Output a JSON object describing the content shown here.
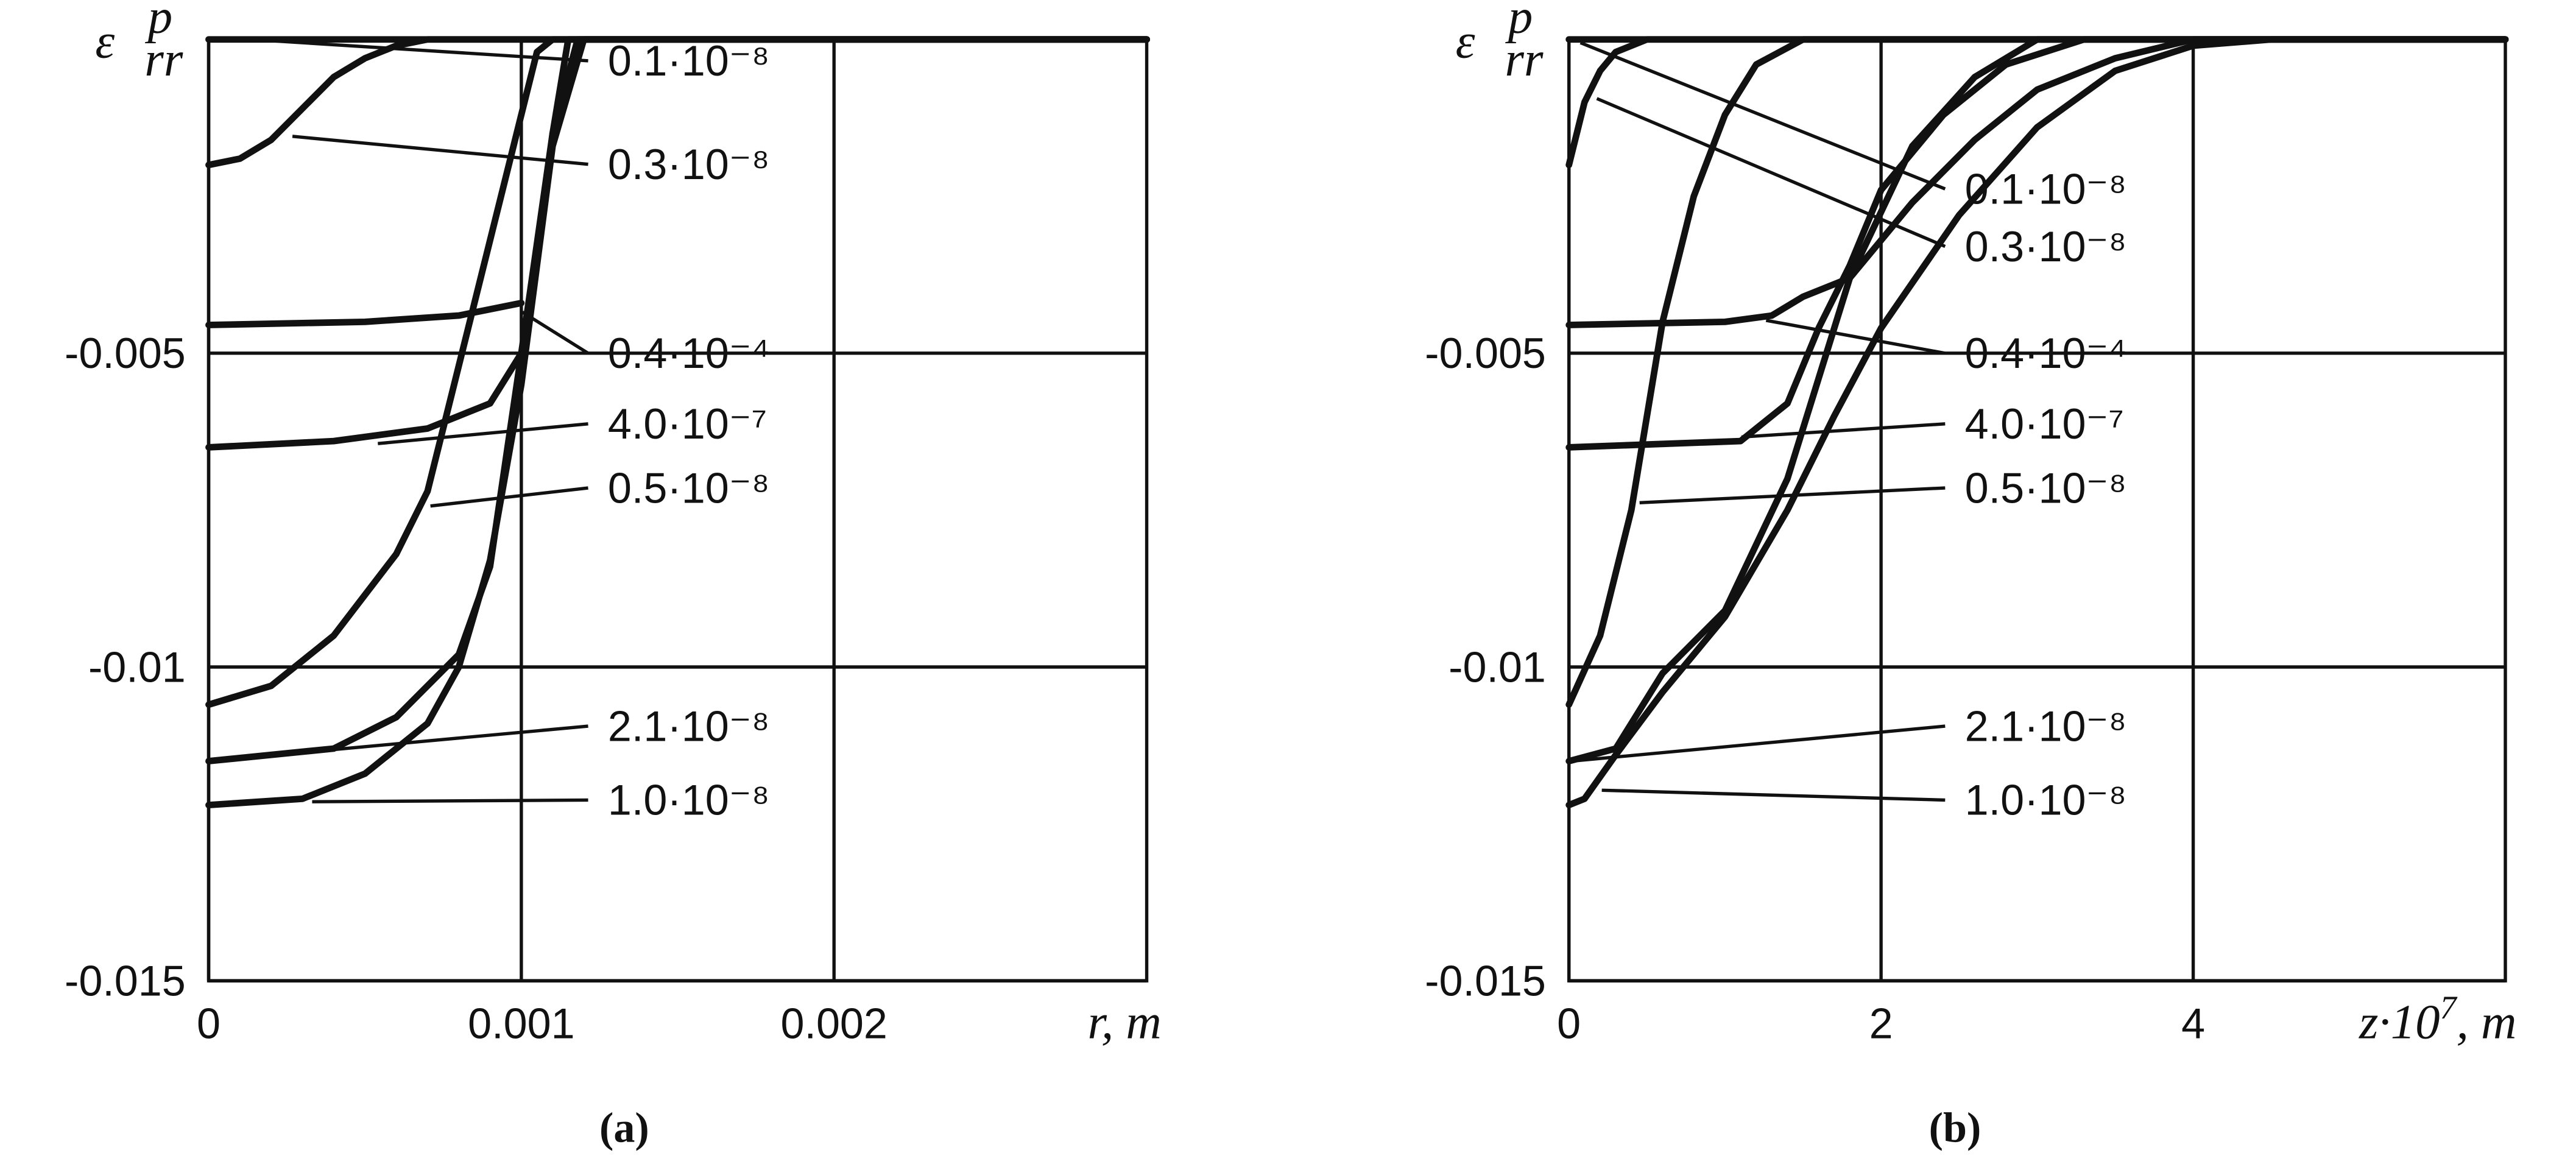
{
  "chart_data": [
    {
      "type": "line",
      "caption": "(a)",
      "y_label": {
        "symbol": "ε",
        "superscript": "p",
        "subscript": "rr"
      },
      "x_label": {
        "text": "r, m"
      },
      "xlim": [
        0,
        0.003
      ],
      "xticks": [
        0,
        0.001,
        0.002
      ],
      "ylim": [
        -0.015,
        0
      ],
      "yticks": [
        -0.015,
        -0.01,
        -0.005
      ],
      "grid": true,
      "color": "#111111",
      "series": [
        {
          "name": "0.1·10⁻⁸",
          "x": [
            0,
            0.003
          ],
          "values": [
            0,
            0
          ]
        },
        {
          "name": "0.3·10⁻⁸",
          "x": [
            0,
            0.0001,
            0.0002,
            0.0003,
            0.0004,
            0.0005,
            0.0006,
            0.0007,
            0.003
          ],
          "values": [
            -0.002,
            -0.0019,
            -0.0016,
            -0.0011,
            -0.0006,
            -0.0003,
            -0.0001,
            0,
            0
          ]
        },
        {
          "name": "0.4·10⁻⁴",
          "x": [
            0,
            0.0005,
            0.0008,
            0.001
          ],
          "values": [
            -0.00455,
            -0.0045,
            -0.0044,
            -0.0042
          ]
        },
        {
          "name": "4.0·10⁻⁷",
          "x": [
            0,
            0.0004,
            0.0007,
            0.0009,
            0.001,
            0.00105,
            0.0011,
            0.00115,
            0.003
          ],
          "values": [
            -0.0065,
            -0.0064,
            -0.0062,
            -0.0058,
            -0.005,
            -0.0035,
            -0.0015,
            0,
            0
          ]
        },
        {
          "name": "0.5·10⁻⁸",
          "x": [
            0,
            0.0002,
            0.0004,
            0.0006,
            0.0007,
            0.0008,
            0.0009,
            0.001,
            0.00105,
            0.0011,
            0.003
          ],
          "values": [
            -0.0106,
            -0.0103,
            -0.0095,
            -0.0082,
            -0.0072,
            -0.0052,
            -0.0032,
            -0.0012,
            -0.0002,
            0,
            0
          ]
        },
        {
          "name": "2.1·10⁻⁸",
          "x": [
            0,
            0.0004,
            0.0006,
            0.0008,
            0.0009,
            0.001,
            0.0011,
            0.00118,
            0.003
          ],
          "values": [
            -0.0115,
            -0.0113,
            -0.0108,
            -0.0098,
            -0.0084,
            -0.005,
            -0.0015,
            0,
            0
          ]
        },
        {
          "name": "1.0·10⁻⁸",
          "x": [
            0,
            0.0003,
            0.0005,
            0.0007,
            0.0008,
            0.0009,
            0.001,
            0.0011,
            0.0012,
            0.003
          ],
          "values": [
            -0.0122,
            -0.0121,
            -0.0117,
            -0.0109,
            -0.01,
            -0.0083,
            -0.0055,
            -0.0017,
            0,
            0
          ]
        }
      ]
    },
    {
      "type": "line",
      "caption": "(b)",
      "y_label": {
        "symbol": "ε",
        "superscript": "p",
        "subscript": "rr"
      },
      "x_label": {
        "text": "z·10",
        "superscript": "7",
        "suffix": ", m"
      },
      "xlim": [
        0,
        6
      ],
      "xticks": [
        0,
        2,
        4
      ],
      "ylim": [
        -0.015,
        0
      ],
      "yticks": [
        -0.015,
        -0.01,
        -0.005
      ],
      "grid": true,
      "color": "#111111",
      "series": [
        {
          "name": "0.1·10⁻⁸",
          "x": [
            0,
            6
          ],
          "values": [
            0,
            0
          ]
        },
        {
          "name": "0.3·10⁻⁸",
          "x": [
            0,
            0.05,
            0.1,
            0.2,
            0.3,
            0.5,
            6
          ],
          "values": [
            -0.002,
            -0.0015,
            -0.001,
            -0.0005,
            -0.0002,
            0,
            0
          ]
        },
        {
          "name": "0.4·10⁻⁴",
          "x": [
            0,
            1,
            1.3,
            1.5,
            1.8,
            2.2,
            2.6,
            3,
            3.5,
            4,
            6
          ],
          "values": [
            -0.00455,
            -0.0045,
            -0.0044,
            -0.0041,
            -0.0038,
            -0.0026,
            -0.0016,
            -0.0008,
            -0.0003,
            0,
            0
          ]
        },
        {
          "name": "4.0·10⁻⁷",
          "x": [
            0,
            1.1,
            1.2,
            1.4,
            1.6,
            1.8,
            2,
            2.4,
            2.8,
            3.3,
            6
          ],
          "values": [
            -0.0065,
            -0.0064,
            -0.0062,
            -0.0058,
            -0.0046,
            -0.0036,
            -0.0024,
            -0.0012,
            -0.0004,
            0,
            0
          ]
        },
        {
          "name": "0.5·10⁻⁸",
          "x": [
            0,
            0.2,
            0.4,
            0.5,
            0.6,
            0.8,
            1,
            1.2,
            1.5,
            6
          ],
          "values": [
            -0.0106,
            -0.0095,
            -0.0075,
            -0.006,
            -0.0045,
            -0.0025,
            -0.0012,
            -0.0004,
            0,
            0
          ]
        },
        {
          "name": "2.1·10⁻⁸",
          "x": [
            0,
            0.3,
            0.6,
            1,
            1.4,
            1.8,
            2.2,
            2.6,
            3,
            6
          ],
          "values": [
            -0.0115,
            -0.0113,
            -0.0101,
            -0.0091,
            -0.007,
            -0.0038,
            -0.0017,
            -0.0006,
            0,
            0
          ]
        },
        {
          "name": "1.0·10⁻⁸",
          "x": [
            0,
            0.1,
            0.3,
            0.6,
            1,
            1.4,
            1.7,
            2,
            2.5,
            3,
            3.5,
            4,
            4.5,
            6
          ],
          "values": [
            -0.0122,
            -0.0121,
            -0.0114,
            -0.0104,
            -0.0092,
            -0.0075,
            -0.006,
            -0.0046,
            -0.0028,
            -0.0014,
            -0.0005,
            -0.0001,
            0,
            0
          ]
        }
      ]
    }
  ]
}
